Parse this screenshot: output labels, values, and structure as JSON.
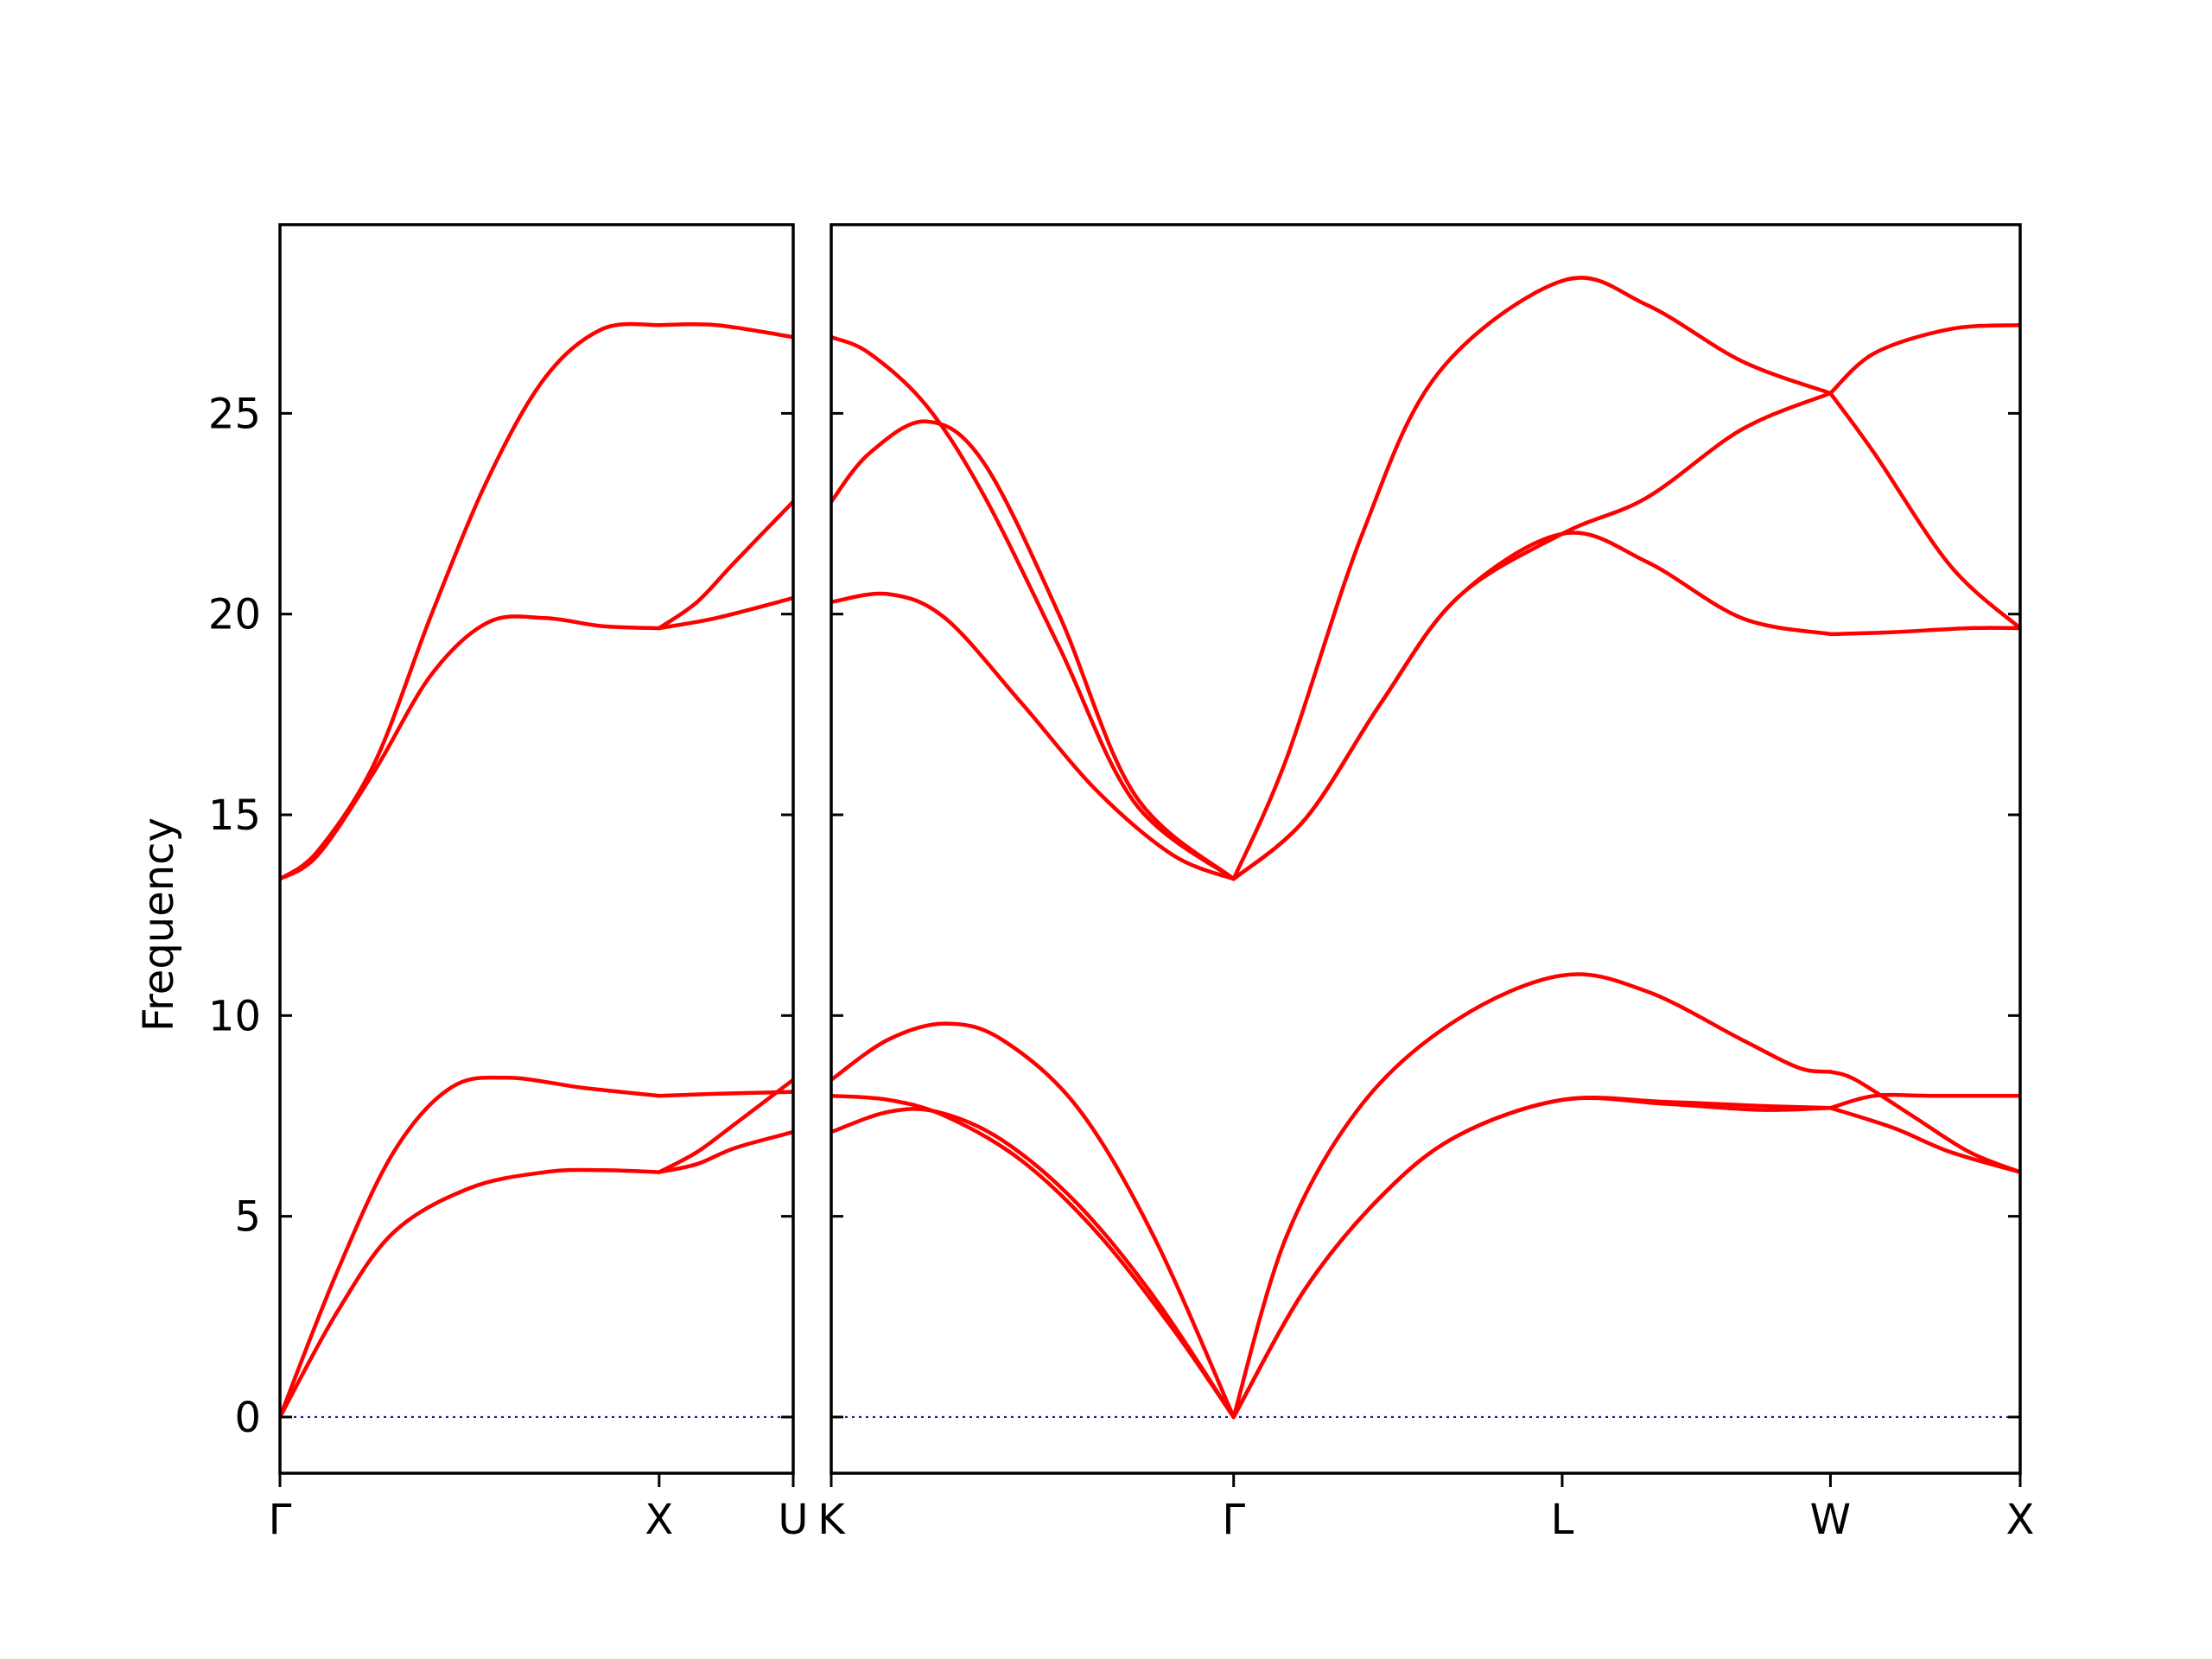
{
  "chart_data": {
    "type": "line",
    "title": "",
    "ylabel": "Frequency",
    "ylim": [
      -1.4,
      29.7
    ],
    "yticks": [
      0,
      5,
      10,
      15,
      20,
      25
    ],
    "colors": {
      "bands": "#ff0000",
      "zero_line": "#1a1aa6",
      "axes": "#000000"
    },
    "panels": [
      {
        "id": "panel1",
        "x_range": [
          0,
          1.3536
        ],
        "ticks": [
          {
            "pos": 0,
            "label": "Γ"
          },
          {
            "pos": 1.0,
            "label": "X"
          },
          {
            "pos": 1.3536,
            "label": "U"
          }
        ],
        "zero_line": true,
        "series": [
          {
            "x": [
              0,
              0.15,
              0.3,
              0.5,
              0.7,
              0.85,
              1.0
            ],
            "y": [
              0,
              2.6,
              4.6,
              5.7,
              6.1,
              6.15,
              6.1
            ]
          },
          {
            "x": [
              0,
              0.15,
              0.3,
              0.45,
              0.6,
              0.8,
              1.0
            ],
            "y": [
              0,
              3.6,
              6.6,
              8.2,
              8.45,
              8.2,
              8.0
            ]
          },
          {
            "x": [
              0,
              0.1,
              0.25,
              0.4,
              0.55,
              0.7,
              0.85,
              1.0
            ],
            "y": [
              13.4,
              14.0,
              16.1,
              18.5,
              19.8,
              19.9,
              19.7,
              19.65
            ]
          },
          {
            "x": [
              0,
              0.1,
              0.25,
              0.4,
              0.55,
              0.7,
              0.85,
              1.0
            ],
            "y": [
              13.4,
              14.1,
              16.3,
              20.0,
              23.4,
              25.9,
              27.1,
              27.2
            ]
          },
          {
            "x": [
              1.0,
              1.1,
              1.2,
              1.3536
            ],
            "y": [
              6.1,
              6.3,
              6.7,
              7.1
            ]
          },
          {
            "x": [
              1.0,
              1.15,
              1.3536
            ],
            "y": [
              8.0,
              8.05,
              8.1
            ]
          },
          {
            "x": [
              1.0,
              1.1,
              1.2,
              1.3536
            ],
            "y": [
              6.1,
              6.6,
              7.3,
              8.4
            ]
          },
          {
            "x": [
              1.0,
              1.15,
              1.3536
            ],
            "y": [
              19.65,
              19.9,
              20.4
            ]
          },
          {
            "x": [
              1.0,
              1.1,
              1.2,
              1.3536
            ],
            "y": [
              19.65,
              20.3,
              21.3,
              22.8
            ]
          },
          {
            "x": [
              1.0,
              1.15,
              1.3536
            ],
            "y": [
              27.2,
              27.2,
              26.9
            ]
          }
        ]
      },
      {
        "id": "panel2",
        "x_range": [
          0,
          3.1339
        ],
        "ticks": [
          {
            "pos": 0,
            "label": "K"
          },
          {
            "pos": 1.0607,
            "label": "Γ"
          },
          {
            "pos": 1.9267,
            "label": "L"
          },
          {
            "pos": 2.6338,
            "label": "W"
          },
          {
            "pos": 3.1339,
            "label": "X"
          }
        ],
        "zero_line": true,
        "series": [
          {
            "x": [
              0,
              0.15,
              0.28,
              0.45,
              0.65,
              0.85,
              1.0607
            ],
            "y": [
              7.1,
              7.6,
              7.6,
              6.9,
              5.3,
              3.0,
              0
            ]
          },
          {
            "x": [
              0,
              0.15,
              0.3,
              0.5,
              0.7,
              0.9,
              1.0607
            ],
            "y": [
              8.0,
              7.9,
              7.5,
              6.4,
              4.6,
              2.2,
              0
            ]
          },
          {
            "x": [
              0,
              0.15,
              0.3,
              0.45,
              0.65,
              0.85,
              1.0607
            ],
            "y": [
              8.4,
              9.4,
              9.8,
              9.4,
              7.7,
              4.5,
              0
            ]
          },
          {
            "x": [
              1.0607,
              1.25,
              1.45,
              1.65,
              1.9267,
              2.2,
              2.45,
              2.6338
            ],
            "y": [
              0,
              3.2,
              5.5,
              7.0,
              7.9,
              7.85,
              7.75,
              7.7
            ]
          },
          {
            "x": [
              1.0607,
              1.25,
              1.45,
              1.65,
              1.9267,
              2.2,
              2.45,
              2.6338
            ],
            "y": [
              0,
              3.2,
              5.5,
              7.0,
              7.9,
              7.8,
              7.65,
              7.7
            ]
          },
          {
            "x": [
              1.0607,
              1.2,
              1.4,
              1.65,
              1.9267,
              2.15,
              2.4,
              2.55,
              2.6338
            ],
            "y": [
              0,
              4.5,
              7.8,
              9.9,
              11.0,
              10.6,
              9.4,
              8.7,
              8.6
            ]
          },
          {
            "x": [
              2.6338,
              2.75,
              2.9,
              3.1339
            ],
            "y": [
              7.7,
              8.0,
              8.0,
              8.0
            ]
          },
          {
            "x": [
              2.6338,
              2.8,
              2.95,
              3.1339
            ],
            "y": [
              7.7,
              7.2,
              6.6,
              6.1
            ]
          },
          {
            "x": [
              2.6338,
              2.7,
              2.85,
              3.0,
              3.1339
            ],
            "y": [
              8.6,
              8.4,
              7.5,
              6.6,
              6.1
            ]
          },
          {
            "x": [
              0,
              0.15,
              0.3,
              0.5,
              0.7,
              0.9,
              1.0607
            ],
            "y": [
              20.3,
              20.5,
              19.9,
              17.8,
              15.6,
              14.0,
              13.4
            ]
          },
          {
            "x": [
              0,
              0.1,
              0.25,
              0.4,
              0.6,
              0.8,
              1.0607
            ],
            "y": [
              22.8,
              24.0,
              24.8,
              23.8,
              20.0,
              15.5,
              13.4
            ]
          },
          {
            "x": [
              0,
              0.1,
              0.25,
              0.4,
              0.6,
              0.8,
              1.0607
            ],
            "y": [
              26.9,
              26.5,
              25.2,
              23.0,
              19.2,
              15.3,
              13.4
            ]
          },
          {
            "x": [
              1.0607,
              1.25,
              1.45,
              1.65,
              1.9267,
              2.15,
              2.4,
              2.6338
            ],
            "y": [
              13.4,
              14.9,
              17.8,
              20.4,
              22.0,
              21.3,
              19.9,
              19.5
            ]
          },
          {
            "x": [
              1.0607,
              1.25,
              1.45,
              1.65,
              1.9267,
              2.15,
              2.4,
              2.6338
            ],
            "y": [
              13.4,
              14.9,
              17.8,
              20.4,
              22.0,
              22.9,
              24.6,
              25.5
            ]
          },
          {
            "x": [
              1.0607,
              1.2,
              1.4,
              1.6,
              1.9267,
              2.15,
              2.4,
              2.6338
            ],
            "y": [
              13.4,
              16.4,
              22.0,
              26.0,
              28.3,
              27.7,
              26.3,
              25.5
            ]
          },
          {
            "x": [
              2.6338,
              2.8,
              3.0,
              3.1339
            ],
            "y": [
              19.5,
              19.55,
              19.65,
              19.65
            ]
          },
          {
            "x": [
              2.6338,
              2.75,
              2.95,
              3.1339
            ],
            "y": [
              25.5,
              24.0,
              21.2,
              19.65
            ]
          },
          {
            "x": [
              2.6338,
              2.75,
              2.95,
              3.1339
            ],
            "y": [
              25.5,
              26.5,
              27.1,
              27.2
            ]
          }
        ]
      }
    ]
  }
}
